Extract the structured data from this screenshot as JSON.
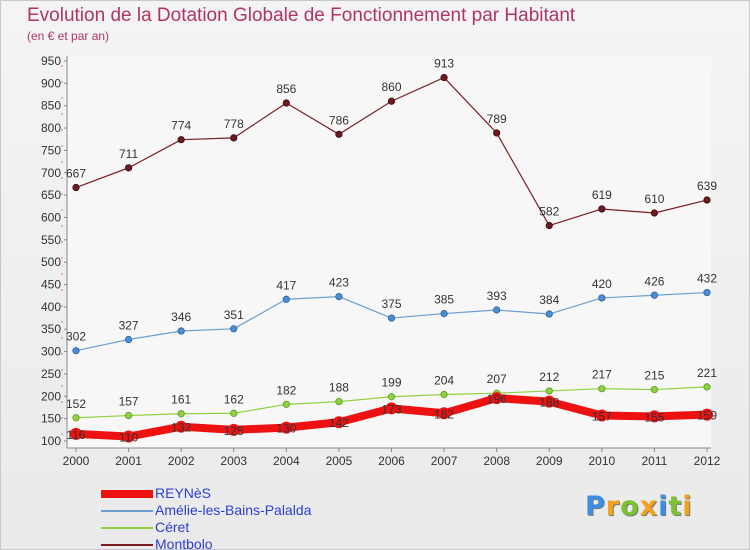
{
  "chart_data": {
    "type": "line",
    "title": "Evolution de la Dotation Globale de Fonctionnement par Habitant",
    "subtitle": "(en € et par an)",
    "x": [
      "2000",
      "2001",
      "2002",
      "2003",
      "2004",
      "2005",
      "2006",
      "2007",
      "2008",
      "2009",
      "2010",
      "2011",
      "2012"
    ],
    "ylim": [
      100,
      950
    ],
    "yticks": [
      100,
      150,
      200,
      250,
      300,
      350,
      400,
      450,
      500,
      550,
      600,
      650,
      700,
      750,
      800,
      850,
      900,
      950
    ],
    "grid": false,
    "legend_position": "bottom-left",
    "series": [
      {
        "name": "REYNèS",
        "color": "#ee1111",
        "values": [
          116,
          110,
          132,
          125,
          130,
          142,
          173,
          162,
          196,
          188,
          157,
          155,
          159
        ]
      },
      {
        "name": "Amélie-les-Bains-Palalda",
        "color": "#6b9fcf",
        "values": [
          302,
          327,
          346,
          351,
          417,
          423,
          375,
          385,
          393,
          384,
          420,
          426,
          432
        ]
      },
      {
        "name": "Céret",
        "color": "#8fd13f",
        "values": [
          152,
          157,
          161,
          162,
          182,
          188,
          199,
          204,
          207,
          212,
          217,
          215,
          221
        ]
      },
      {
        "name": "Montbolo",
        "color": "#7a1e24",
        "values": [
          667,
          711,
          774,
          778,
          856,
          786,
          860,
          913,
          789,
          582,
          619,
          610,
          639
        ]
      }
    ]
  },
  "logo": {
    "letters": [
      "P",
      "r",
      "o",
      "x",
      "i",
      "t",
      "i"
    ],
    "colors": [
      "#3b8ee0",
      "#f2a21c",
      "#7ec234",
      "#f2a21c",
      "#3b8ee0",
      "#7ec234",
      "#f2a21c"
    ]
  }
}
